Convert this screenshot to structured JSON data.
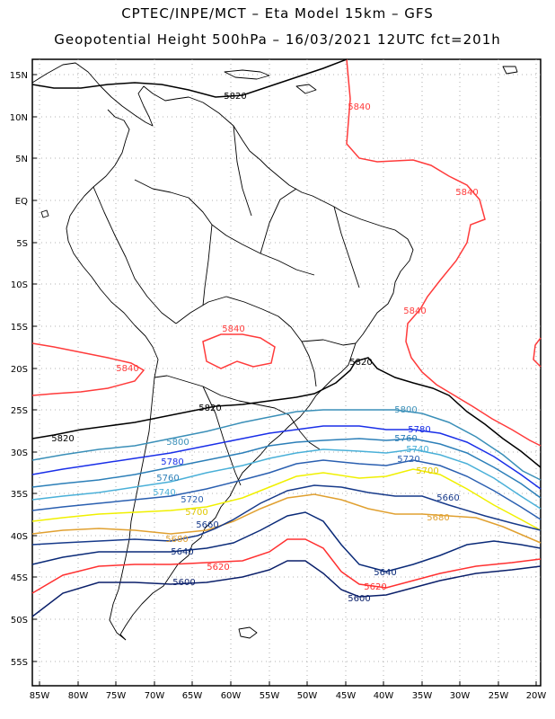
{
  "header": {
    "line1": "CPTEC/INPE/MCT –  Eta Model 15km – GFS",
    "line2": "Geopotential Height 500hPa – 16/03/2021 12UTC fct=201h"
  },
  "axes": {
    "lat_labels": [
      "15N",
      "10N",
      "5N",
      "EQ",
      "5S",
      "10S",
      "15S",
      "20S",
      "25S",
      "30S",
      "35S",
      "40S",
      "45S",
      "50S",
      "55S"
    ],
    "lon_labels": [
      "85W",
      "80W",
      "75W",
      "70W",
      "65W",
      "60W",
      "55W",
      "50W",
      "45W",
      "40W",
      "35W",
      "30W",
      "25W",
      "20W"
    ]
  },
  "colors": {
    "c5840": "#ff3b3b",
    "c5820": "#000000",
    "c5800": "#3a8fb8",
    "c5780": "#1a2fe8",
    "c5760": "#2c7fb8",
    "c5740": "#4ab0d8",
    "c5720": "#2a5fb0",
    "c5700": "#f0f000",
    "c5680": "#e0a030",
    "c5660": "#173a8a",
    "c5640": "#0a2a78",
    "c5620": "#ff3030",
    "c5600": "#0a1f6a"
  },
  "contour_labels": {
    "l5840_a": "5840",
    "l5840_b": "5840",
    "l5840_c": "5840",
    "l5840_d": "5840",
    "l5840_e": "5840",
    "l5820_a": "5820",
    "l5820_b": "5820",
    "l5820_c": "5820",
    "l5820_d": "5820",
    "l5800_a": "5800",
    "l5800_b": "5800",
    "l5780_a": "5780",
    "l5780_b": "5780",
    "l5760_a": "5760",
    "l5760_b": "5760",
    "l5740_a": "5740",
    "l5740_b": "5740",
    "l5720_a": "5720",
    "l5720_b": "5720",
    "l5700_a": "5700",
    "l5700_b": "5700",
    "l5680_a": "5680",
    "l5680_b": "5680",
    "l5660_a": "5660",
    "l5660_b": "5660",
    "l5640_a": "5640",
    "l5640_b": "5640",
    "l5620_a": "5620",
    "l5620_b": "5620",
    "l5600_a": "5600",
    "l5600_b": "5600"
  }
}
